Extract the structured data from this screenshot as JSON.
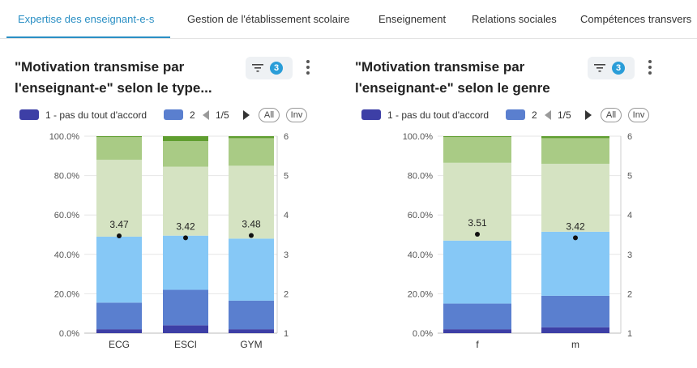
{
  "tabs": [
    {
      "label": "Expertise des enseignant-e-s",
      "active": true
    },
    {
      "label": "Gestion de l'établissement scolaire",
      "active": false
    },
    {
      "label": "Enseignement",
      "active": false
    },
    {
      "label": "Relations sociales",
      "active": false
    },
    {
      "label": "Compétences transvers",
      "active": false
    }
  ],
  "colors": {
    "accent": "#2a8fc4",
    "seg1": "#3d3fa6",
    "seg2": "#5a7fcf",
    "seg3": "#86c8f6",
    "seg4": "#d5e3c2",
    "seg5": "#a9cb85",
    "seg6": "#5f9e2f"
  },
  "panels": [
    {
      "title": "\"Motivation transmise par l'enseignant-e\" selon le type...",
      "filter_count": "3",
      "legend": {
        "first": "1 - pas du tout d'accord",
        "second": "2",
        "pager": "1/5",
        "all_label": "All",
        "inv_label": "Inv"
      }
    },
    {
      "title": "\"Motivation transmise par l'enseignant-e\" selon le genre",
      "filter_count": "3",
      "legend": {
        "first": "1 - pas du tout d'accord",
        "second": "2",
        "pager": "1/5",
        "all_label": "All",
        "inv_label": "Inv"
      }
    }
  ],
  "chart_data": [
    {
      "type": "bar",
      "stacked": true,
      "categories": [
        "ECG",
        "ESCI",
        "GYM"
      ],
      "series": [
        {
          "name": "1 - pas du tout d'accord",
          "values": [
            2,
            4,
            2
          ]
        },
        {
          "name": "2",
          "values": [
            13.5,
            18,
            14.5
          ]
        },
        {
          "values": [
            33.5,
            27.5,
            31.5
          ]
        },
        {
          "values": [
            39,
            35,
            37
          ]
        },
        {
          "values": [
            11.5,
            13,
            14
          ]
        },
        {
          "values": [
            0.5,
            2.5,
            1
          ]
        }
      ],
      "y_left": {
        "ticks": [
          "0.0%",
          "20.0%",
          "40.0%",
          "60.0%",
          "80.0%",
          "100.0%"
        ],
        "range": [
          0,
          100
        ]
      },
      "y_right": {
        "ticks": [
          "1",
          "2",
          "3",
          "4",
          "5",
          "6"
        ],
        "range": [
          1,
          6
        ]
      },
      "means": [
        3.47,
        3.42,
        3.48
      ],
      "mean_labels": [
        "3.47",
        "3.42",
        "3.48"
      ],
      "grid": true
    },
    {
      "type": "bar",
      "stacked": true,
      "categories": [
        "f",
        "m"
      ],
      "series": [
        {
          "name": "1 - pas du tout d'accord",
          "values": [
            2,
            3
          ]
        },
        {
          "name": "2",
          "values": [
            13,
            16
          ]
        },
        {
          "values": [
            32,
            32.5
          ]
        },
        {
          "values": [
            39.5,
            34.5
          ]
        },
        {
          "values": [
            13,
            13
          ]
        },
        {
          "values": [
            0.5,
            1
          ]
        }
      ],
      "y_left": {
        "ticks": [
          "0.0%",
          "20.0%",
          "40.0%",
          "60.0%",
          "80.0%",
          "100.0%"
        ],
        "range": [
          0,
          100
        ]
      },
      "y_right": {
        "ticks": [
          "1",
          "2",
          "3",
          "4",
          "5",
          "6"
        ],
        "range": [
          1,
          6
        ]
      },
      "means": [
        3.51,
        3.42
      ],
      "mean_labels": [
        "3.51",
        "3.42"
      ],
      "grid": true
    }
  ]
}
